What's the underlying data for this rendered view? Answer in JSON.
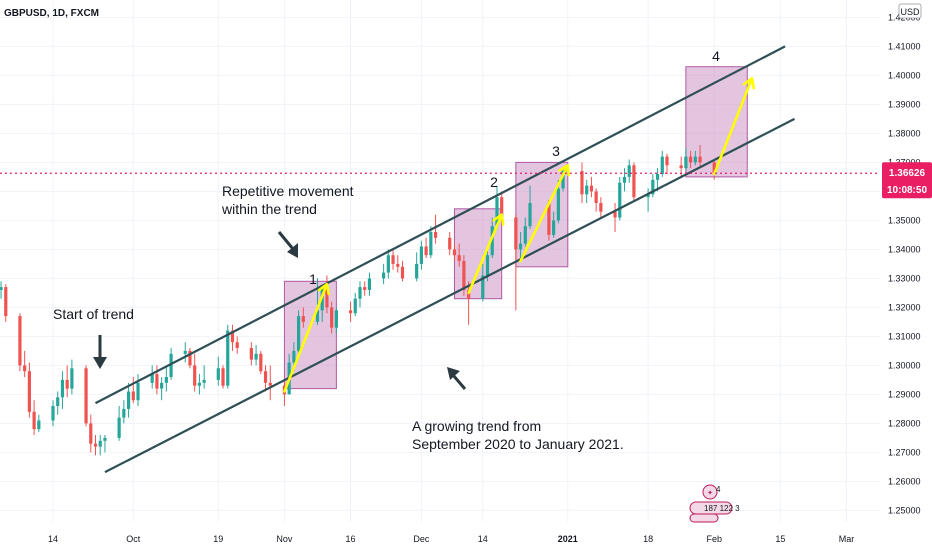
{
  "header": {
    "symbol_line": "GBPUSD, 1D, FXCM",
    "currency": "USD"
  },
  "price_scale": {
    "current_price": "1.36626",
    "countdown": "10:08:50",
    "tag_color": "#e91e63"
  },
  "annotations": {
    "start_of_trend": "Start of trend",
    "repetitive_line1": "Repetitive movement",
    "repetitive_line2": "within the trend",
    "growing_line1": "A growing trend from",
    "growing_line2": "September 2020 to January 2021.",
    "wave_labels": [
      "1",
      "2",
      "3",
      "4"
    ]
  },
  "event_badges": {
    "top_count": "4",
    "row_text": "187 122 3"
  },
  "colors": {
    "up": "#26a69a",
    "down": "#ef5350",
    "channel": "#2f4f56",
    "highlight_fill": "#c98bc2",
    "arrow": "#ffff00",
    "price_line": "#e91e63"
  },
  "chart_data": {
    "type": "candlestick",
    "title": "GBPUSD, 1D, FXCM",
    "ylabel": "USD",
    "y_ticks": [
      "1.25000",
      "1.26000",
      "1.27000",
      "1.28000",
      "1.29000",
      "1.30000",
      "1.31000",
      "1.32000",
      "1.33000",
      "1.34000",
      "1.35000",
      "1.36000",
      "1.37000",
      "1.38000",
      "1.39000",
      "1.40000",
      "1.41000",
      "1.42000"
    ],
    "ylim": [
      1.246,
      1.426
    ],
    "x_ticks": [
      "14",
      "Oct",
      "19",
      "Nov",
      "16",
      "Dec",
      "14",
      "2021",
      "18",
      "Feb",
      "15",
      "Mar"
    ],
    "current_price": 1.36626,
    "channel_upper": [
      {
        "date": "2020-09-23",
        "price": 1.287
      },
      {
        "date": "2021-02-16",
        "price": 1.41
      }
    ],
    "channel_lower": [
      {
        "date": "2020-09-25",
        "price": 1.2632
      },
      {
        "date": "2021-02-18",
        "price": 1.385
      }
    ],
    "candles": [
      {
        "date": "2020-09-01",
        "open": 1.334,
        "high": 1.348,
        "low": 1.332,
        "close": 1.336
      },
      {
        "date": "2020-09-02",
        "open": 1.336,
        "high": 1.3365,
        "low": 1.324,
        "close": 1.326
      },
      {
        "date": "2020-09-03",
        "open": 1.326,
        "high": 1.329,
        "low": 1.323,
        "close": 1.327
      },
      {
        "date": "2020-09-04",
        "open": 1.327,
        "high": 1.328,
        "low": 1.315,
        "close": 1.317
      },
      {
        "date": "2020-09-07",
        "open": 1.317,
        "high": 1.318,
        "low": 1.298,
        "close": 1.3
      },
      {
        "date": "2020-09-08",
        "open": 1.3,
        "high": 1.305,
        "low": 1.296,
        "close": 1.298
      },
      {
        "date": "2020-09-09",
        "open": 1.298,
        "high": 1.301,
        "low": 1.282,
        "close": 1.284
      },
      {
        "date": "2020-09-10",
        "open": 1.284,
        "high": 1.288,
        "low": 1.276,
        "close": 1.278
      },
      {
        "date": "2020-09-11",
        "open": 1.278,
        "high": 1.283,
        "low": 1.277,
        "close": 1.281
      },
      {
        "date": "2020-09-14",
        "open": 1.281,
        "high": 1.288,
        "low": 1.279,
        "close": 1.286
      },
      {
        "date": "2020-09-15",
        "open": 1.286,
        "high": 1.291,
        "low": 1.283,
        "close": 1.289
      },
      {
        "date": "2020-09-16",
        "open": 1.289,
        "high": 1.298,
        "low": 1.285,
        "close": 1.295
      },
      {
        "date": "2020-09-17",
        "open": 1.295,
        "high": 1.3,
        "low": 1.289,
        "close": 1.292
      },
      {
        "date": "2020-09-18",
        "open": 1.292,
        "high": 1.302,
        "low": 1.29,
        "close": 1.299
      },
      {
        "date": "2020-09-21",
        "open": 1.299,
        "high": 1.3,
        "low": 1.279,
        "close": 1.28
      },
      {
        "date": "2020-09-22",
        "open": 1.28,
        "high": 1.283,
        "low": 1.27,
        "close": 1.273
      },
      {
        "date": "2020-09-23",
        "open": 1.273,
        "high": 1.276,
        "low": 1.269,
        "close": 1.272
      },
      {
        "date": "2020-09-24",
        "open": 1.272,
        "high": 1.276,
        "low": 1.269,
        "close": 1.274
      },
      {
        "date": "2020-09-25",
        "open": 1.274,
        "high": 1.276,
        "low": 1.27,
        "close": 1.275
      },
      {
        "date": "2020-09-28",
        "open": 1.275,
        "high": 1.286,
        "low": 1.274,
        "close": 1.282
      },
      {
        "date": "2020-09-29",
        "open": 1.282,
        "high": 1.288,
        "low": 1.28,
        "close": 1.285
      },
      {
        "date": "2020-09-30",
        "open": 1.285,
        "high": 1.294,
        "low": 1.282,
        "close": 1.291
      },
      {
        "date": "2020-10-01",
        "open": 1.291,
        "high": 1.296,
        "low": 1.287,
        "close": 1.288
      },
      {
        "date": "2020-10-02",
        "open": 1.288,
        "high": 1.297,
        "low": 1.286,
        "close": 1.294
      },
      {
        "date": "2020-10-05",
        "open": 1.294,
        "high": 1.3,
        "low": 1.292,
        "close": 1.297
      },
      {
        "date": "2020-10-06",
        "open": 1.297,
        "high": 1.3,
        "low": 1.29,
        "close": 1.292
      },
      {
        "date": "2020-10-07",
        "open": 1.292,
        "high": 1.296,
        "low": 1.288,
        "close": 1.294
      },
      {
        "date": "2020-10-08",
        "open": 1.294,
        "high": 1.3,
        "low": 1.291,
        "close": 1.296
      },
      {
        "date": "2020-10-09",
        "open": 1.296,
        "high": 1.306,
        "low": 1.295,
        "close": 1.304
      },
      {
        "date": "2020-10-12",
        "open": 1.304,
        "high": 1.308,
        "low": 1.301,
        "close": 1.305
      },
      {
        "date": "2020-10-13",
        "open": 1.305,
        "high": 1.306,
        "low": 1.299,
        "close": 1.3
      },
      {
        "date": "2020-10-14",
        "open": 1.3,
        "high": 1.304,
        "low": 1.291,
        "close": 1.293
      },
      {
        "date": "2020-10-15",
        "open": 1.293,
        "high": 1.297,
        "low": 1.29,
        "close": 1.294
      },
      {
        "date": "2020-10-16",
        "open": 1.294,
        "high": 1.3,
        "low": 1.292,
        "close": 1.295
      },
      {
        "date": "2020-10-19",
        "open": 1.295,
        "high": 1.303,
        "low": 1.293,
        "close": 1.299
      },
      {
        "date": "2020-10-20",
        "open": 1.299,
        "high": 1.3,
        "low": 1.292,
        "close": 1.293
      },
      {
        "date": "2020-10-21",
        "open": 1.293,
        "high": 1.314,
        "low": 1.292,
        "close": 1.312
      },
      {
        "date": "2020-10-22",
        "open": 1.312,
        "high": 1.314,
        "low": 1.305,
        "close": 1.308
      },
      {
        "date": "2020-10-23",
        "open": 1.308,
        "high": 1.31,
        "low": 1.304,
        "close": 1.306
      },
      {
        "date": "2020-10-26",
        "open": 1.306,
        "high": 1.308,
        "low": 1.3,
        "close": 1.302
      },
      {
        "date": "2020-10-27",
        "open": 1.302,
        "high": 1.307,
        "low": 1.3,
        "close": 1.304
      },
      {
        "date": "2020-10-28",
        "open": 1.304,
        "high": 1.305,
        "low": 1.297,
        "close": 1.298
      },
      {
        "date": "2020-10-29",
        "open": 1.298,
        "high": 1.3,
        "low": 1.291,
        "close": 1.294
      },
      {
        "date": "2020-10-30",
        "open": 1.294,
        "high": 1.3,
        "low": 1.288,
        "close": 1.293
      },
      {
        "date": "2020-11-02",
        "open": 1.293,
        "high": 1.295,
        "low": 1.286,
        "close": 1.29
      },
      {
        "date": "2020-11-03",
        "open": 1.29,
        "high": 1.304,
        "low": 1.29,
        "close": 1.301
      },
      {
        "date": "2020-11-04",
        "open": 1.301,
        "high": 1.308,
        "low": 1.298,
        "close": 1.305
      },
      {
        "date": "2020-11-05",
        "open": 1.305,
        "high": 1.319,
        "low": 1.304,
        "close": 1.317
      },
      {
        "date": "2020-11-06",
        "open": 1.317,
        "high": 1.32,
        "low": 1.313,
        "close": 1.315
      },
      {
        "date": "2020-11-09",
        "open": 1.315,
        "high": 1.33,
        "low": 1.314,
        "close": 1.319
      },
      {
        "date": "2020-11-10",
        "open": 1.319,
        "high": 1.328,
        "low": 1.315,
        "close": 1.327
      },
      {
        "date": "2020-11-11",
        "open": 1.327,
        "high": 1.331,
        "low": 1.318,
        "close": 1.32
      },
      {
        "date": "2020-11-12",
        "open": 1.32,
        "high": 1.322,
        "low": 1.311,
        "close": 1.313
      },
      {
        "date": "2020-11-13",
        "open": 1.313,
        "high": 1.32,
        "low": 1.311,
        "close": 1.319
      },
      {
        "date": "2020-11-16",
        "open": 1.319,
        "high": 1.322,
        "low": 1.315,
        "close": 1.318
      },
      {
        "date": "2020-11-17",
        "open": 1.318,
        "high": 1.325,
        "low": 1.317,
        "close": 1.323
      },
      {
        "date": "2020-11-18",
        "open": 1.323,
        "high": 1.329,
        "low": 1.32,
        "close": 1.327
      },
      {
        "date": "2020-11-19",
        "open": 1.327,
        "high": 1.329,
        "low": 1.324,
        "close": 1.326
      },
      {
        "date": "2020-11-20",
        "open": 1.326,
        "high": 1.332,
        "low": 1.324,
        "close": 1.33
      },
      {
        "date": "2020-11-23",
        "open": 1.33,
        "high": 1.335,
        "low": 1.328,
        "close": 1.332
      },
      {
        "date": "2020-11-24",
        "open": 1.332,
        "high": 1.34,
        "low": 1.33,
        "close": 1.338
      },
      {
        "date": "2020-11-25",
        "open": 1.338,
        "high": 1.34,
        "low": 1.333,
        "close": 1.335
      },
      {
        "date": "2020-11-26",
        "open": 1.335,
        "high": 1.338,
        "low": 1.332,
        "close": 1.334
      },
      {
        "date": "2020-11-27",
        "open": 1.334,
        "high": 1.336,
        "low": 1.329,
        "close": 1.33
      },
      {
        "date": "2020-11-30",
        "open": 1.33,
        "high": 1.339,
        "low": 1.329,
        "close": 1.335
      },
      {
        "date": "2020-12-01",
        "open": 1.335,
        "high": 1.343,
        "low": 1.333,
        "close": 1.341
      },
      {
        "date": "2020-12-02",
        "open": 1.341,
        "high": 1.344,
        "low": 1.337,
        "close": 1.338
      },
      {
        "date": "2020-12-03",
        "open": 1.338,
        "high": 1.348,
        "low": 1.337,
        "close": 1.346
      },
      {
        "date": "2020-12-04",
        "open": 1.346,
        "high": 1.352,
        "low": 1.342,
        "close": 1.344
      },
      {
        "date": "2020-12-07",
        "open": 1.344,
        "high": 1.346,
        "low": 1.338,
        "close": 1.34
      },
      {
        "date": "2020-12-08",
        "open": 1.34,
        "high": 1.342,
        "low": 1.336,
        "close": 1.338
      },
      {
        "date": "2020-12-09",
        "open": 1.338,
        "high": 1.342,
        "low": 1.334,
        "close": 1.336
      },
      {
        "date": "2020-12-10",
        "open": 1.336,
        "high": 1.338,
        "low": 1.324,
        "close": 1.326
      },
      {
        "date": "2020-12-11",
        "open": 1.326,
        "high": 1.329,
        "low": 1.314,
        "close": 1.323
      },
      {
        "date": "2020-12-14",
        "open": 1.323,
        "high": 1.335,
        "low": 1.322,
        "close": 1.331
      },
      {
        "date": "2020-12-15",
        "open": 1.331,
        "high": 1.34,
        "low": 1.329,
        "close": 1.338
      },
      {
        "date": "2020-12-16",
        "open": 1.338,
        "high": 1.351,
        "low": 1.337,
        "close": 1.348
      },
      {
        "date": "2020-12-17",
        "open": 1.348,
        "high": 1.362,
        "low": 1.347,
        "close": 1.358
      },
      {
        "date": "2020-12-18",
        "open": 1.358,
        "high": 1.36,
        "low": 1.349,
        "close": 1.351
      },
      {
        "date": "2020-12-21",
        "open": 1.351,
        "high": 1.352,
        "low": 1.319,
        "close": 1.34
      },
      {
        "date": "2020-12-22",
        "open": 1.34,
        "high": 1.346,
        "low": 1.336,
        "close": 1.342
      },
      {
        "date": "2020-12-23",
        "open": 1.342,
        "high": 1.351,
        "low": 1.341,
        "close": 1.348
      },
      {
        "date": "2020-12-24",
        "open": 1.348,
        "high": 1.362,
        "low": 1.347,
        "close": 1.356
      },
      {
        "date": "2020-12-28",
        "open": 1.356,
        "high": 1.357,
        "low": 1.343,
        "close": 1.345
      },
      {
        "date": "2020-12-29",
        "open": 1.345,
        "high": 1.353,
        "low": 1.344,
        "close": 1.35
      },
      {
        "date": "2020-12-30",
        "open": 1.35,
        "high": 1.364,
        "low": 1.349,
        "close": 1.361
      },
      {
        "date": "2020-12-31",
        "open": 1.361,
        "high": 1.368,
        "low": 1.36,
        "close": 1.367
      },
      {
        "date": "2021-01-04",
        "open": 1.367,
        "high": 1.37,
        "low": 1.356,
        "close": 1.359
      },
      {
        "date": "2021-01-05",
        "open": 1.359,
        "high": 1.364,
        "low": 1.356,
        "close": 1.362
      },
      {
        "date": "2021-01-06",
        "open": 1.362,
        "high": 1.365,
        "low": 1.358,
        "close": 1.36
      },
      {
        "date": "2021-01-07",
        "open": 1.36,
        "high": 1.361,
        "low": 1.353,
        "close": 1.356
      },
      {
        "date": "2021-01-08",
        "open": 1.356,
        "high": 1.358,
        "low": 1.351,
        "close": 1.353
      },
      {
        "date": "2021-01-11",
        "open": 1.353,
        "high": 1.356,
        "low": 1.346,
        "close": 1.351
      },
      {
        "date": "2021-01-12",
        "open": 1.351,
        "high": 1.365,
        "low": 1.35,
        "close": 1.363
      },
      {
        "date": "2021-01-13",
        "open": 1.363,
        "high": 1.368,
        "low": 1.36,
        "close": 1.365
      },
      {
        "date": "2021-01-14",
        "open": 1.365,
        "high": 1.371,
        "low": 1.363,
        "close": 1.369
      },
      {
        "date": "2021-01-15",
        "open": 1.369,
        "high": 1.37,
        "low": 1.357,
        "close": 1.358
      },
      {
        "date": "2021-01-18",
        "open": 1.358,
        "high": 1.361,
        "low": 1.353,
        "close": 1.359
      },
      {
        "date": "2021-01-19",
        "open": 1.359,
        "high": 1.366,
        "low": 1.358,
        "close": 1.364
      },
      {
        "date": "2021-01-20",
        "open": 1.364,
        "high": 1.368,
        "low": 1.36,
        "close": 1.366
      },
      {
        "date": "2021-01-21",
        "open": 1.366,
        "high": 1.374,
        "low": 1.365,
        "close": 1.372
      },
      {
        "date": "2021-01-22",
        "open": 1.372,
        "high": 1.373,
        "low": 1.366,
        "close": 1.369
      },
      {
        "date": "2021-01-25",
        "open": 1.369,
        "high": 1.372,
        "low": 1.365,
        "close": 1.368
      },
      {
        "date": "2021-01-26",
        "open": 1.368,
        "high": 1.375,
        "low": 1.367,
        "close": 1.372
      },
      {
        "date": "2021-01-27",
        "open": 1.372,
        "high": 1.374,
        "low": 1.368,
        "close": 1.37
      },
      {
        "date": "2021-01-28",
        "open": 1.37,
        "high": 1.374,
        "low": 1.369,
        "close": 1.372
      },
      {
        "date": "2021-01-29",
        "open": 1.372,
        "high": 1.376,
        "low": 1.368,
        "close": 1.37
      },
      {
        "date": "2021-02-01",
        "open": 1.37,
        "high": 1.371,
        "low": 1.364,
        "close": 1.3663
      }
    ]
  }
}
